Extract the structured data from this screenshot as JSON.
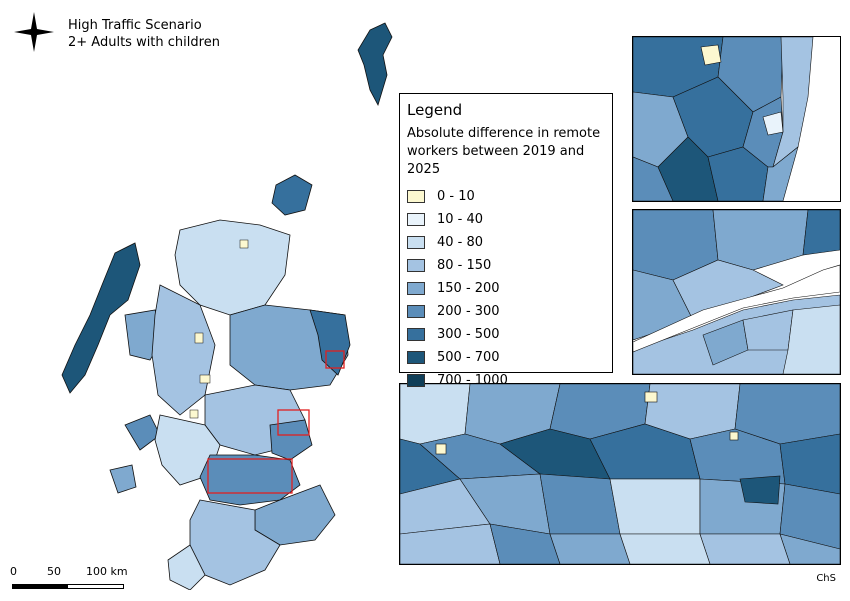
{
  "title": {
    "line1": "High Traffic Scenario",
    "line2": "2+ Adults with children"
  },
  "legend": {
    "title": "Legend",
    "subtitle": "Absolute difference in remote workers between 2019 and 2025",
    "items": [
      {
        "label": "0 - 10",
        "color": "#fcf8d0"
      },
      {
        "label": "10 - 40",
        "color": "#e9f3fb"
      },
      {
        "label": "40 - 80",
        "color": "#c9dff1"
      },
      {
        "label": "80 - 150",
        "color": "#a4c3e2"
      },
      {
        "label": "150 - 200",
        "color": "#7fa9cf"
      },
      {
        "label": "200 - 300",
        "color": "#5b8db9"
      },
      {
        "label": "300 - 500",
        "color": "#36709d"
      },
      {
        "label": "500 - 700",
        "color": "#1d5679"
      },
      {
        "label": "700 - 1000",
        "color": "#0f3e58"
      }
    ]
  },
  "scalebar": {
    "labels": [
      "0",
      "50",
      "100 km"
    ]
  },
  "credit": "ChS",
  "highlight_color": "#e02020",
  "north_arrow_icon": "compass-star-icon"
}
